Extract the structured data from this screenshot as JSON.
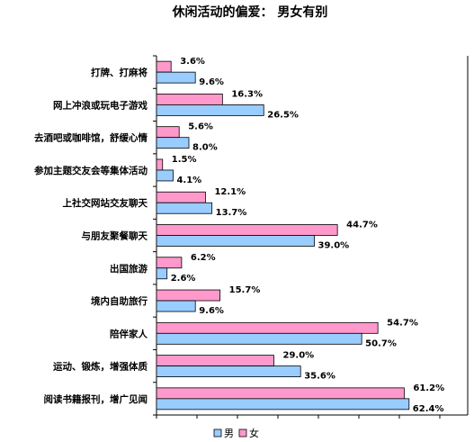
{
  "chart_data": {
    "type": "bar",
    "orientation": "horizontal",
    "title": "休闲活动的偏爱： 男女有别",
    "categories": [
      "打牌、打麻将",
      "网上冲浪或玩电子游戏",
      "去酒吧或咖啡馆，舒缓心情",
      "参加主题交友会等集体活动",
      "上社交网站交友聊天",
      "与朋友聚餐聊天",
      "出国旅游",
      "境内自助旅行",
      "陪伴家人",
      "运动、锻炼，增强体质",
      "阅读书籍报刊，增广见闻"
    ],
    "series": [
      {
        "name": "男",
        "color": "#99ccff",
        "values": [
          9.6,
          26.5,
          8.0,
          4.1,
          13.7,
          39.0,
          2.6,
          9.6,
          50.7,
          35.6,
          62.4
        ],
        "labels": [
          "9.6%",
          "26.5%",
          "8.0%",
          "4.1%",
          "13.7%",
          "39.0%",
          "2.6%",
          "9.6%",
          "50.7%",
          "35.6%",
          "62.4%"
        ]
      },
      {
        "name": "女",
        "color": "#ff99cc",
        "values": [
          3.6,
          16.3,
          5.6,
          1.5,
          12.1,
          44.7,
          6.2,
          15.7,
          54.7,
          29.0,
          61.2
        ],
        "labels": [
          "3.6%",
          "16.3%",
          "5.6%",
          "1.5%",
          "12.1%",
          "44.7%",
          "6.2%",
          "15.7%",
          "54.7%",
          "29.0%",
          "61.2%"
        ]
      }
    ],
    "xlim": [
      0,
      70
    ],
    "grid": false,
    "legend": "bottom"
  }
}
